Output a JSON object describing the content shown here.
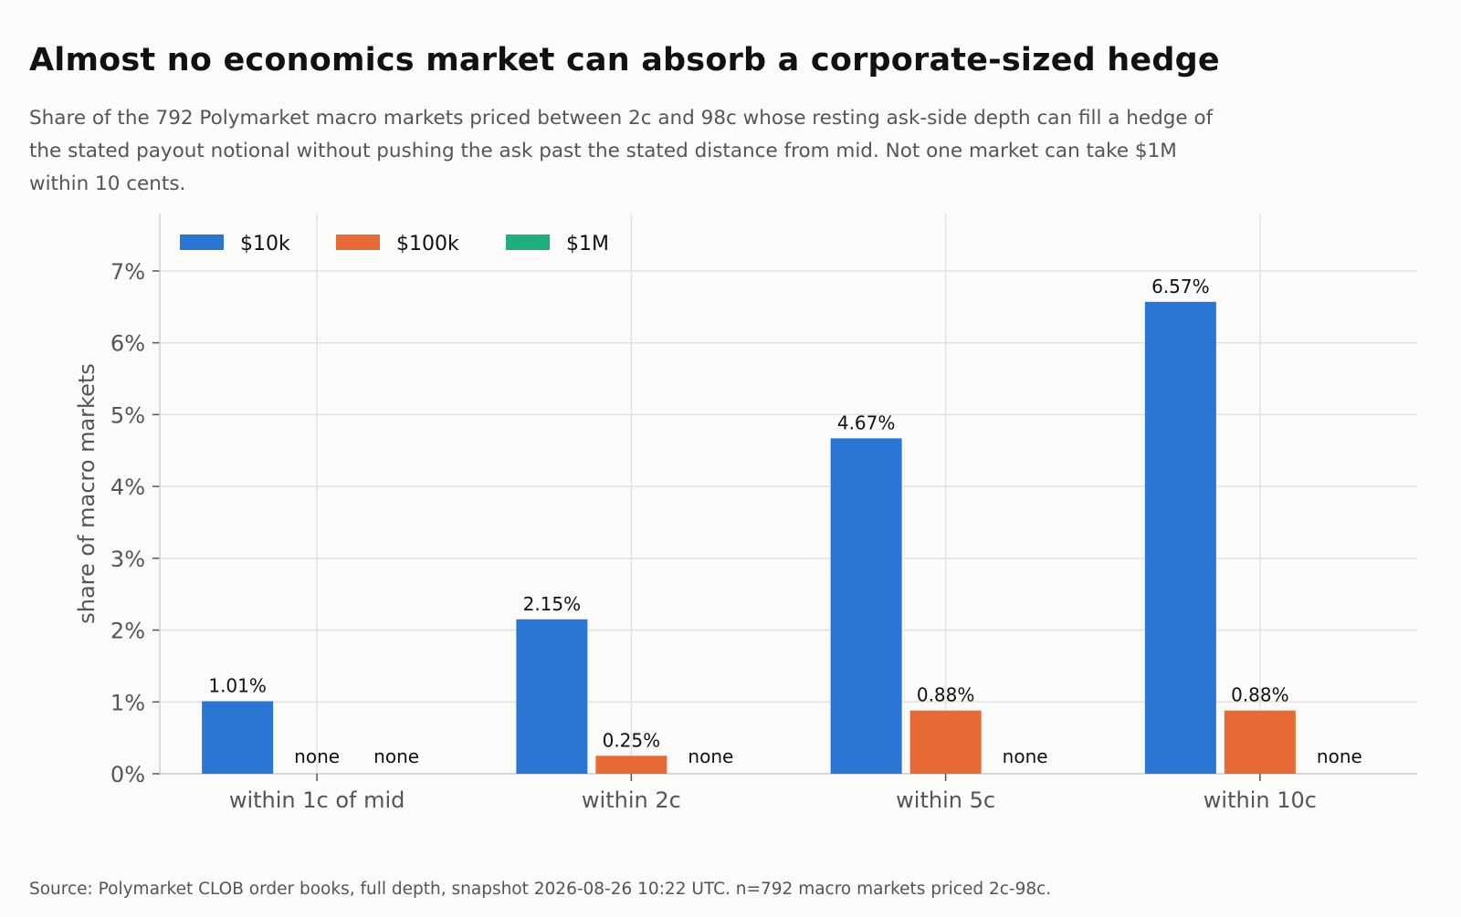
{
  "title": "Almost no economics market can absorb a corporate-sized hedge",
  "subtitle": "Share of the 792 Polymarket macro markets priced between 2c and 98c whose resting ask-side depth can fill a hedge of the stated payout notional without pushing the ask past the stated distance from mid. Not one market can take $1M within 10 cents.",
  "source": "Source: Polymarket CLOB order books, full depth, snapshot 2026-08-26 10:22 UTC. n=792 macro markets priced 2c-98c.",
  "chart_data": {
    "type": "bar",
    "categories": [
      "within 1c of mid",
      "within 2c",
      "within 5c",
      "within 10c"
    ],
    "series": [
      {
        "name": "$10k",
        "color": "#2a76d4",
        "values": [
          1.01,
          2.15,
          4.67,
          6.57
        ],
        "labels": [
          "1.01%",
          "2.15%",
          "4.67%",
          "6.57%"
        ]
      },
      {
        "name": "$100k",
        "color": "#e86a35",
        "values": [
          0,
          0.25,
          0.88,
          0.88
        ],
        "labels": [
          "none",
          "0.25%",
          "0.88%",
          "0.88%"
        ]
      },
      {
        "name": "$1M",
        "color": "#1fae7e",
        "values": [
          0,
          0,
          0,
          0
        ],
        "labels": [
          "none",
          "none",
          "none",
          "none"
        ]
      }
    ],
    "xlabel": "",
    "ylabel": "share of macro markets",
    "ylim": [
      0,
      7.8
    ],
    "yticks": [
      {
        "value": 0,
        "label": "0%"
      },
      {
        "value": 1,
        "label": "1%"
      },
      {
        "value": 2,
        "label": "2%"
      },
      {
        "value": 3,
        "label": "3%"
      },
      {
        "value": 4,
        "label": "4%"
      },
      {
        "value": 5,
        "label": "5%"
      },
      {
        "value": 6,
        "label": "6%"
      },
      {
        "value": 7,
        "label": "7%"
      }
    ],
    "grid": true,
    "legend_position": "top-left"
  }
}
